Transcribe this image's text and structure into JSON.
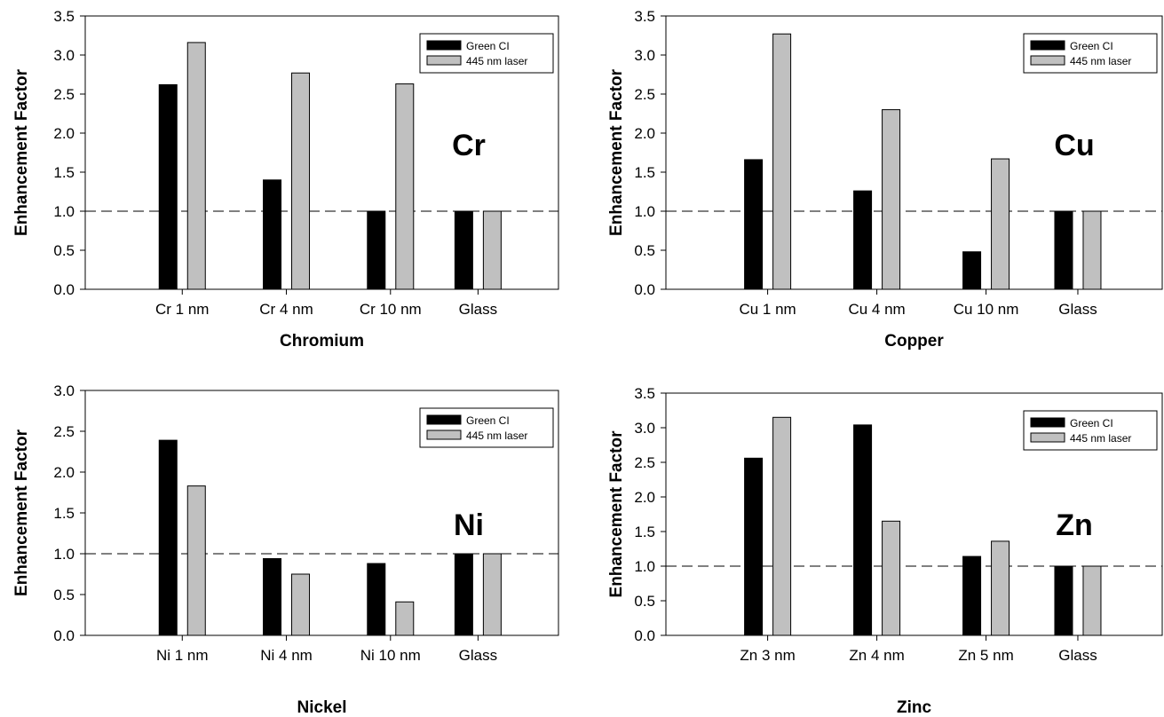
{
  "colors": {
    "series_dark": "#000000",
    "series_light": "#c0c0c0",
    "frame": "#000000",
    "refline": "#000000"
  },
  "chart_data": [
    {
      "type": "bar",
      "xlabel": "Chromium",
      "ylabel": "Enhancement Factor",
      "annotation": "Cr",
      "categories": [
        "Cr 1 nm",
        "Cr 4 nm",
        "Cr 10 nm",
        "Glass"
      ],
      "series": [
        {
          "name": "Green CI",
          "values": [
            2.62,
            1.4,
            1.0,
            1.0
          ]
        },
        {
          "name": "445 nm laser",
          "values": [
            3.16,
            2.77,
            2.63,
            1.0
          ]
        }
      ],
      "ylim": [
        0,
        3.5
      ],
      "yticks": [
        "0.0",
        "0.5",
        "1.0",
        "1.5",
        "2.0",
        "2.5",
        "3.0",
        "3.5"
      ],
      "reference_line": 1.0,
      "legend": "top-right",
      "grid": false
    },
    {
      "type": "bar",
      "xlabel": "Copper",
      "ylabel": "Enhancement Factor",
      "annotation": "Cu",
      "categories": [
        "Cu 1 nm",
        "Cu 4 nm",
        "Cu 10 nm",
        "Glass"
      ],
      "series": [
        {
          "name": "Green CI",
          "values": [
            1.66,
            1.26,
            0.48,
            1.0
          ]
        },
        {
          "name": "445 nm laser",
          "values": [
            3.27,
            2.3,
            1.67,
            1.0
          ]
        }
      ],
      "ylim": [
        0,
        3.5
      ],
      "yticks": [
        "0.0",
        "0.5",
        "1.0",
        "1.5",
        "2.0",
        "2.5",
        "3.0",
        "3.5"
      ],
      "reference_line": 1.0,
      "legend": "top-right",
      "grid": false
    },
    {
      "type": "bar",
      "xlabel": "Nickel",
      "ylabel": "Enhancement Factor",
      "annotation": "Ni",
      "categories": [
        "Ni 1 nm",
        "Ni 4 nm",
        "Ni 10 nm",
        "Glass"
      ],
      "series": [
        {
          "name": "Green CI",
          "values": [
            2.39,
            0.94,
            0.88,
            1.0
          ]
        },
        {
          "name": "445 nm laser",
          "values": [
            1.83,
            0.75,
            0.41,
            1.0
          ]
        }
      ],
      "ylim": [
        0,
        3.0
      ],
      "yticks": [
        "0.0",
        "0.5",
        "1.0",
        "1.5",
        "2.0",
        "2.5",
        "3.0"
      ],
      "reference_line": 1.0,
      "legend": "top-right",
      "grid": false
    },
    {
      "type": "bar",
      "xlabel": "Zinc",
      "ylabel": "Enhancement Factor",
      "annotation": "Zn",
      "categories": [
        "Zn 3 nm",
        "Zn 4 nm",
        "Zn 5 nm",
        "Glass"
      ],
      "series": [
        {
          "name": "Green CI",
          "values": [
            2.56,
            3.04,
            1.14,
            1.0
          ]
        },
        {
          "name": "445 nm laser",
          "values": [
            3.15,
            1.65,
            1.36,
            1.0
          ]
        }
      ],
      "ylim": [
        0,
        3.5
      ],
      "yticks": [
        "0.0",
        "0.5",
        "1.0",
        "1.5",
        "2.0",
        "2.5",
        "3.0",
        "3.5"
      ],
      "reference_line": 1.0,
      "legend": "top-right",
      "grid": false
    }
  ]
}
